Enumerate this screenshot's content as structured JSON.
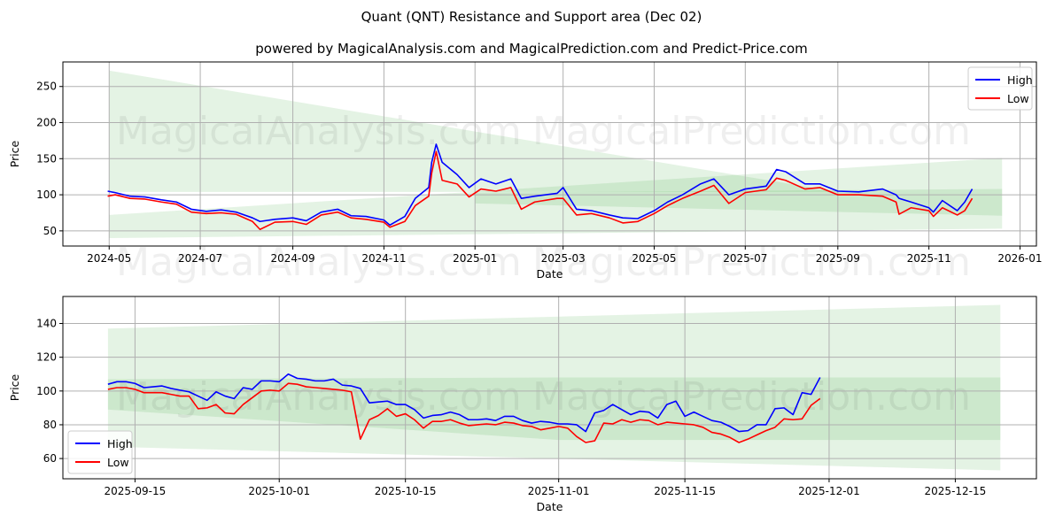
{
  "title": "Quant (QNT) Resistance and Support area (Dec 02)",
  "subtitle": "powered by MagicalAnalysis.com and MagicalPrediction.com and Predict-Price.com",
  "watermarks": [
    "MagicalAnalysis.com",
    "MagicalPrediction.com"
  ],
  "colors": {
    "high": "#0000ff",
    "low": "#ff0000",
    "band": "#2ca02c"
  },
  "chart_data": [
    {
      "type": "line",
      "xlabel": "Date",
      "ylabel": "Price",
      "xlim": [
        "2024-03-31",
        "2026-01-12"
      ],
      "ylim": [
        29,
        284
      ],
      "yticks": [
        50,
        100,
        150,
        200,
        250
      ],
      "xticks": [
        "2024-05-01",
        "2024-07-01",
        "2024-09-01",
        "2024-11-01",
        "2025-01-01",
        "2025-03-01",
        "2025-05-01",
        "2025-07-01",
        "2025-09-01",
        "2025-11-01",
        "2026-01-01"
      ],
      "xtick_labels": [
        "2024-05",
        "2024-07",
        "2024-09",
        "2024-11",
        "2025-01",
        "2025-03",
        "2025-05",
        "2025-07",
        "2025-09",
        "2025-11",
        "2026-01"
      ],
      "grid": true,
      "legend": {
        "position": "top-right",
        "entries": [
          "High",
          "Low"
        ]
      },
      "bands": [
        {
          "dates": [
            "2024-05-01",
            "2025-09-01"
          ],
          "upper": [
            272,
            104
          ],
          "lower": [
            104,
            104
          ]
        },
        {
          "dates": [
            "2024-05-01",
            "2025-12-20"
          ],
          "upper": [
            72,
            151
          ],
          "lower": [
            40,
            53
          ]
        },
        {
          "dates": [
            "2025-01-01",
            "2025-12-20"
          ],
          "upper": [
            103,
            108
          ],
          "lower": [
            88,
            71
          ]
        }
      ],
      "x": [
        "2024-04-30",
        "2024-05-05",
        "2024-05-15",
        "2024-05-25",
        "2024-06-05",
        "2024-06-15",
        "2024-06-25",
        "2024-07-05",
        "2024-07-15",
        "2024-07-25",
        "2024-08-05",
        "2024-08-10",
        "2024-08-20",
        "2024-09-01",
        "2024-09-10",
        "2024-09-20",
        "2024-10-01",
        "2024-10-10",
        "2024-10-20",
        "2024-11-01",
        "2024-11-05",
        "2024-11-15",
        "2024-11-22",
        "2024-12-01",
        "2024-12-03",
        "2024-12-06",
        "2024-12-10",
        "2024-12-20",
        "2024-12-28",
        "2025-01-05",
        "2025-01-15",
        "2025-01-25",
        "2025-02-01",
        "2025-02-10",
        "2025-02-25",
        "2025-03-01",
        "2025-03-10",
        "2025-03-20",
        "2025-04-01",
        "2025-04-10",
        "2025-04-20",
        "2025-05-01",
        "2025-05-10",
        "2025-05-20",
        "2025-06-01",
        "2025-06-10",
        "2025-06-20",
        "2025-07-01",
        "2025-07-15",
        "2025-07-22",
        "2025-07-28",
        "2025-08-10",
        "2025-08-20",
        "2025-09-01",
        "2025-09-15",
        "2025-10-01",
        "2025-10-10",
        "2025-10-12",
        "2025-10-20",
        "2025-11-01",
        "2025-11-04",
        "2025-11-10",
        "2025-11-20",
        "2025-11-25",
        "2025-11-30"
      ],
      "series": [
        {
          "name": "High",
          "values": [
            105,
            103,
            98,
            97,
            93,
            90,
            80,
            77,
            79,
            76,
            68,
            63,
            66,
            68,
            64,
            76,
            80,
            71,
            70,
            65,
            58,
            70,
            95,
            110,
            145,
            170,
            145,
            128,
            110,
            122,
            115,
            122,
            95,
            98,
            102,
            110,
            80,
            78,
            72,
            68,
            67,
            78,
            90,
            100,
            115,
            122,
            100,
            108,
            112,
            135,
            132,
            115,
            115,
            105,
            104,
            108,
            100,
            95,
            90,
            82,
            76,
            92,
            78,
            90,
            108
          ]
        },
        {
          "name": "Low",
          "values": [
            98,
            100,
            95,
            94,
            90,
            87,
            76,
            74,
            75,
            73,
            63,
            52,
            62,
            63,
            59,
            72,
            76,
            68,
            66,
            62,
            55,
            63,
            85,
            98,
            130,
            160,
            120,
            115,
            97,
            108,
            105,
            110,
            80,
            90,
            95,
            95,
            72,
            74,
            68,
            61,
            63,
            74,
            85,
            95,
            105,
            113,
            88,
            103,
            107,
            123,
            120,
            108,
            110,
            100,
            100,
            98,
            90,
            73,
            82,
            78,
            70,
            82,
            72,
            78,
            95
          ]
        }
      ]
    },
    {
      "type": "line",
      "xlabel": "Date",
      "ylabel": "Price",
      "xlim": [
        "2025-09-07",
        "2025-12-24"
      ],
      "ylim": [
        48,
        156
      ],
      "yticks": [
        60,
        80,
        100,
        120,
        140
      ],
      "xticks": [
        "2025-09-15",
        "2025-10-01",
        "2025-10-15",
        "2025-11-01",
        "2025-11-15",
        "2025-12-01",
        "2025-12-15"
      ],
      "xtick_labels": [
        "2025-09-15",
        "2025-10-01",
        "2025-10-15",
        "2025-11-01",
        "2025-11-15",
        "2025-12-01",
        "2025-12-15"
      ],
      "grid": true,
      "legend": {
        "position": "bottom-left",
        "entries": [
          "High",
          "Low"
        ]
      },
      "bands": [
        {
          "dates": [
            "2025-09-12",
            "2025-12-20"
          ],
          "upper": [
            137,
            151
          ],
          "lower": [
            67,
            53
          ]
        },
        {
          "dates": [
            "2025-09-12",
            "2025-11-01",
            "2025-12-20"
          ],
          "upper": [
            107,
            108,
            108
          ],
          "lower": [
            89,
            71,
            71
          ]
        }
      ],
      "x_start": "2025-09-12",
      "x_step_days": 1,
      "series": [
        {
          "name": "High",
          "values": [
            104,
            105.5,
            105.5,
            104.5,
            102,
            102.5,
            103,
            101.5,
            100.5,
            99.5,
            97,
            94.5,
            99.5,
            97,
            95.5,
            102,
            101,
            106,
            106,
            105.5,
            110,
            107.5,
            107,
            106,
            106,
            107,
            103.5,
            103,
            101.5,
            93,
            93.5,
            94,
            92,
            92,
            89,
            84,
            85.5,
            86,
            87.5,
            86,
            83,
            83,
            83.5,
            82.5,
            85,
            85,
            82.5,
            81,
            82,
            81.5,
            80.5,
            80.5,
            80,
            76,
            87,
            88.5,
            92,
            89,
            86,
            88,
            87.5,
            84,
            92,
            94,
            85,
            87.5,
            85,
            82.5,
            81.5,
            79,
            76,
            76.5,
            80,
            80,
            89.5,
            90,
            86,
            99,
            98,
            108
          ]
        },
        {
          "name": "Low",
          "values": [
            101,
            102,
            102,
            101,
            99,
            99,
            99,
            98,
            97,
            97,
            89.5,
            90,
            92,
            87,
            86.5,
            92,
            96,
            100,
            100.5,
            100,
            104.5,
            104,
            102.5,
            102,
            101.5,
            101,
            100.5,
            99.5,
            71.5,
            83,
            85.5,
            89.5,
            85,
            86.5,
            83,
            78,
            82,
            82,
            83,
            81,
            79.5,
            80,
            80.5,
            80,
            81.5,
            81,
            79.5,
            79,
            77,
            78,
            79,
            78,
            73,
            69.5,
            70.5,
            81,
            80.5,
            83,
            81.5,
            83,
            82.5,
            80,
            81.5,
            81,
            80.5,
            80,
            78.5,
            75.5,
            74.5,
            72.5,
            69.5,
            71.5,
            74,
            76.5,
            78.5,
            83.5,
            83,
            83.5,
            91.5,
            95.5
          ]
        }
      ]
    }
  ]
}
